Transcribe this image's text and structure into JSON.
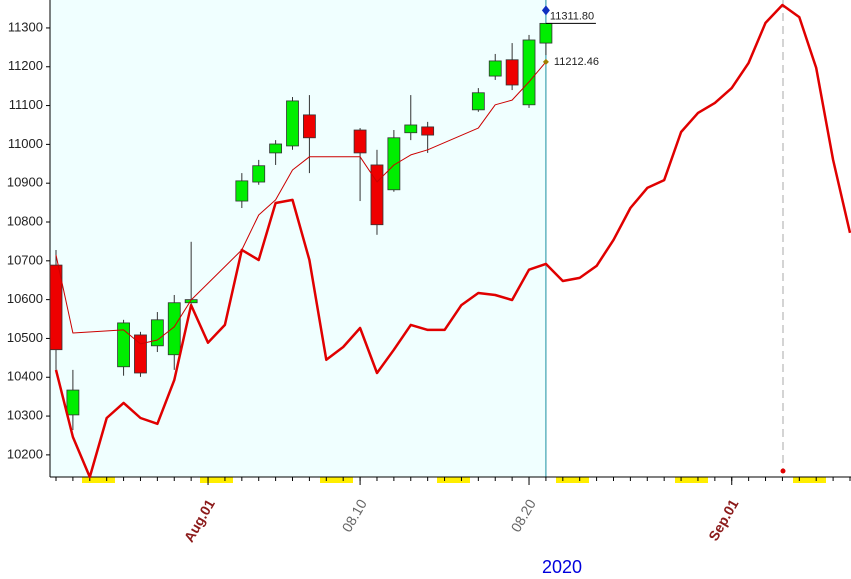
{
  "chart_data": {
    "type": "candlestick",
    "xlabel": "2020",
    "xlim": [
      "07.23",
      "09.08"
    ],
    "xticks": [
      {
        "value": "08.01",
        "label": "Aug.01"
      },
      "08.10",
      "08.20",
      {
        "value": "09.01",
        "label": "Sep.01"
      }
    ],
    "ylim": [
      10143,
      11372
    ],
    "yticks": [
      10200,
      10300,
      10400,
      10500,
      10600,
      10700,
      10800,
      10900,
      11000,
      11100,
      11200,
      11300
    ],
    "series": [
      {
        "type": "candlestick",
        "up_color": "#00ee00",
        "down_color": "#ee0000",
        "x": [
          "07.23",
          "07.24",
          "07.27",
          "07.28",
          "07.29",
          "07.30",
          "07.31",
          "08.03",
          "08.04",
          "08.05",
          "08.06",
          "08.07",
          "08.10",
          "08.11",
          "08.12",
          "08.13",
          "08.14",
          "08.17",
          "08.18",
          "08.19",
          "08.20",
          "08.21"
        ],
        "open": [
          10689,
          10303,
          10427,
          10509,
          10481,
          10458,
          10592,
          10854,
          10903,
          10978,
          10996,
          11076,
          11037,
          10947,
          10883,
          11030,
          11045,
          11089,
          11176,
          11218,
          11102,
          11261
        ],
        "high": [
          10728,
          10419,
          10548,
          10517,
          10568,
          10612,
          10749,
          10926,
          10960,
          11011,
          11122,
          11127,
          11042,
          10986,
          11037,
          11127,
          11058,
          11145,
          11233,
          11261,
          11282,
          11311.8
        ],
        "low": [
          10419,
          10264,
          10404,
          10401,
          10465,
          10419,
          10580,
          10836,
          10896,
          10947,
          10986,
          10926,
          10854,
          10767,
          10878,
          11011,
          10978,
          11084,
          11166,
          11140,
          11094,
          11230
        ],
        "close": [
          10471,
          10367,
          10540,
          10411,
          10548,
          10592,
          10600,
          10906,
          10945,
          11001,
          11112,
          11017,
          10978,
          10793,
          11017,
          11050,
          11024,
          11133,
          11215,
          11153,
          11269,
          11311.8
        ]
      },
      {
        "type": "line",
        "color": "#cc0000",
        "width": 1,
        "x": [
          "07.23",
          "07.24",
          "07.27",
          "07.28",
          "07.29",
          "07.30",
          "07.31",
          "08.03",
          "08.04",
          "08.05",
          "08.06",
          "08.07",
          "08.10",
          "08.11",
          "08.12",
          "08.13",
          "08.14",
          "08.17",
          "08.18",
          "08.19",
          "08.20",
          "08.21"
        ],
        "values": [
          10715,
          10514,
          10522,
          10486,
          10496,
          10530,
          10599,
          10728,
          10818,
          10857,
          10934,
          10968,
          10968,
          10903,
          10947,
          10973,
          10986,
          11042,
          11102,
          11114,
          11161,
          11212.46
        ]
      },
      {
        "type": "line",
        "color": "#e00000",
        "width": 2.5,
        "x": [
          "07.23",
          "07.24",
          "07.25",
          "07.26",
          "07.27",
          "07.28",
          "07.29",
          "07.30",
          "07.31",
          "08.01",
          "08.02",
          "08.03",
          "08.04",
          "08.05",
          "08.06",
          "08.07",
          "08.08",
          "08.09",
          "08.10",
          "08.11",
          "08.12",
          "08.13",
          "08.14",
          "08.15",
          "08.16",
          "08.17",
          "08.18",
          "08.19",
          "08.20",
          "08.21",
          "08.22",
          "08.23",
          "08.24",
          "08.25",
          "08.26",
          "08.27",
          "08.28",
          "08.29",
          "08.30",
          "08.31",
          "09.01",
          "09.02",
          "09.03",
          "09.04",
          "09.05",
          "09.06",
          "09.07",
          "09.08"
        ],
        "values": [
          10419,
          10246,
          10143,
          10295,
          10334,
          10295,
          10280,
          10393,
          10586,
          10489,
          10535,
          10728,
          10702,
          10849,
          10857,
          10702,
          10445,
          10478,
          10527,
          10411,
          10471,
          10535,
          10522,
          10522,
          10586,
          10617,
          10612,
          10599,
          10677,
          10692,
          10648,
          10656,
          10687,
          10754,
          10836,
          10888,
          10908,
          11032,
          11081,
          11107,
          11145,
          11210,
          11313,
          11359,
          11328,
          11197,
          10960,
          10772
        ]
      }
    ],
    "annotations": [
      {
        "x": "08.21",
        "value": 11311.8,
        "label": "11311.80",
        "color": "#1030c0"
      },
      {
        "x": "08.21",
        "value": 11212.46,
        "label": "11212.46",
        "color": "#a08000"
      }
    ]
  }
}
